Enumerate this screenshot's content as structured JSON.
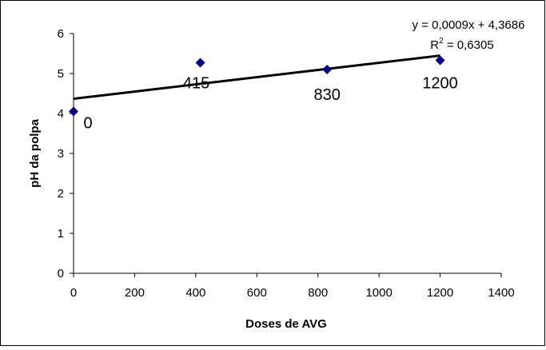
{
  "chart_data": {
    "type": "scatter",
    "title": "",
    "xlabel": "Doses de AVG",
    "ylabel": "pH da polpa",
    "xlim": [
      0,
      1400
    ],
    "ylim": [
      0,
      6
    ],
    "xticks": [
      "0",
      "200",
      "400",
      "600",
      "800",
      "1000",
      "1200",
      "1400"
    ],
    "yticks": [
      "0",
      "1",
      "2",
      "3",
      "4",
      "5",
      "6"
    ],
    "grid": false,
    "points": [
      {
        "x": 0,
        "y": 4.05,
        "label": "0"
      },
      {
        "x": 415,
        "y": 5.27,
        "label": "415"
      },
      {
        "x": 830,
        "y": 5.1,
        "label": "830"
      },
      {
        "x": 1200,
        "y": 5.33,
        "label": "1200"
      }
    ],
    "marker_color": "#000080",
    "trendline": {
      "slope": 0.0009,
      "intercept": 4.3686,
      "x_range": [
        0,
        1200
      ],
      "equation": "y = 0,0009x + 4,3686",
      "r2_prefix": "R",
      "r2_sup": "2",
      "r2_value": " = 0,6305",
      "color": "#000000"
    }
  }
}
